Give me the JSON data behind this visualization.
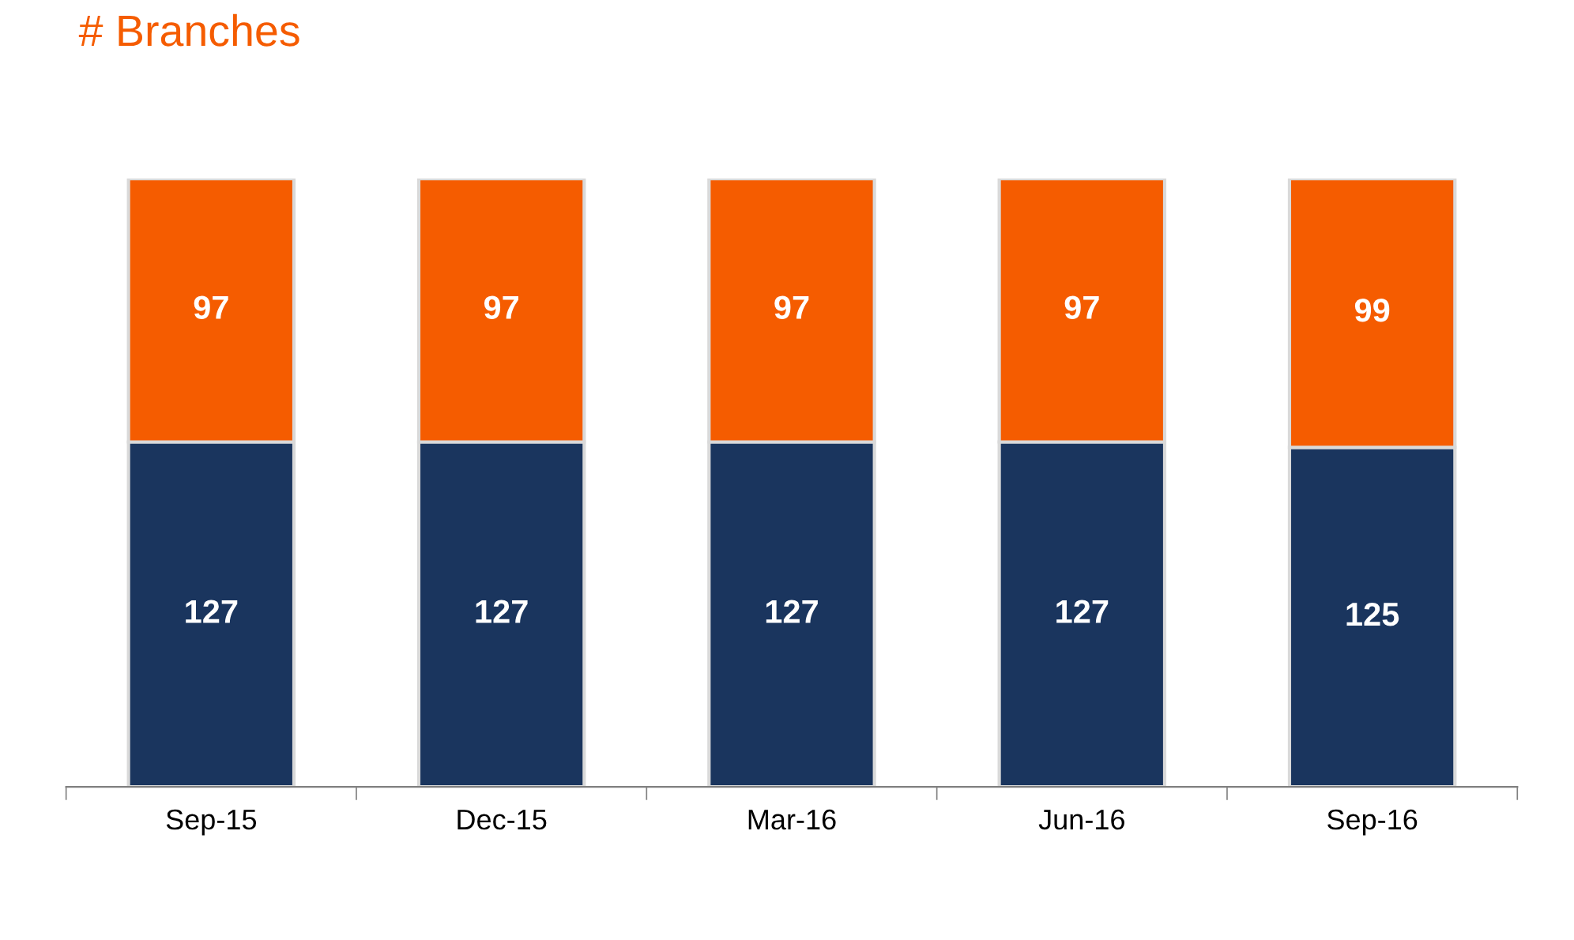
{
  "chart_data": {
    "type": "bar",
    "title": "# Branches",
    "stacked": true,
    "data_labels": true,
    "categories": [
      "Sep-15",
      "Dec-15",
      "Mar-16",
      "Jun-16",
      "Sep-16"
    ],
    "series": [
      {
        "color": "#1a355e",
        "values": [
          127,
          127,
          127,
          127,
          125
        ]
      },
      {
        "color": "#f55c00",
        "values": [
          97,
          97,
          97,
          97,
          99
        ]
      }
    ]
  }
}
